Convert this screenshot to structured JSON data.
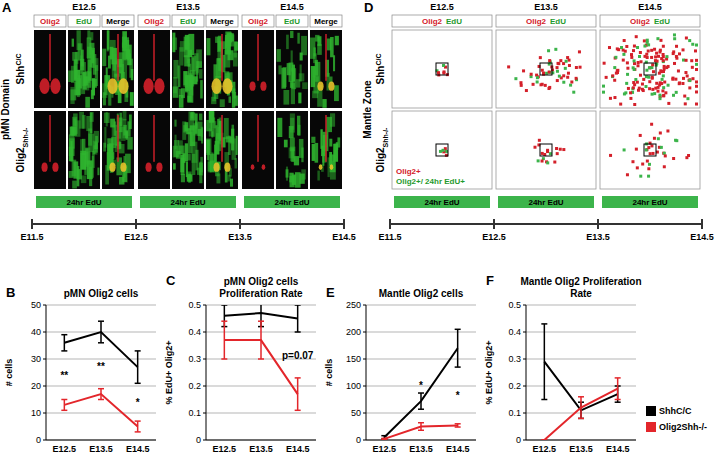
{
  "panel_a": {
    "letter": "A",
    "columns": [
      "E12.5",
      "E13.5",
      "E14.5"
    ],
    "channels": [
      "Olig2",
      "EdU",
      "Merge"
    ],
    "side_label": "pMN Domain",
    "rows": [
      {
        "text": "Shh",
        "superscript": "C/C"
      },
      {
        "text": "Olig2",
        "subscript": "Shh-/-"
      }
    ],
    "pulse": "24hr EdU",
    "timeline": [
      "E11.5",
      "E12.5",
      "E13.5",
      "E14.5"
    ]
  },
  "panel_d": {
    "letter": "D",
    "columns": [
      "E12.5",
      "E13.5",
      "E14.5"
    ],
    "channels": [
      "Olig2",
      "EdU"
    ],
    "side_label": "Mantle Zone",
    "rows": [
      {
        "text": "Shh",
        "superscript": "C/C"
      },
      {
        "text": "Olig2",
        "subscript": "Shh-/-"
      }
    ],
    "key": [
      "Olig2+",
      "Olig2+/ 24hr EdU+"
    ],
    "pulse": "24hr EdU",
    "timeline": [
      "E11.5",
      "E12.5",
      "E13.5",
      "E14.5"
    ]
  },
  "chart_data": [
    {
      "type": "line",
      "panel_label": "B",
      "title": "pMN Olig2 cells",
      "categories": [
        "E12.5",
        "E13.5",
        "E14.5"
      ],
      "y_label": "# cells",
      "ylim": [
        0,
        50
      ],
      "yticks": [
        0,
        10,
        20,
        30,
        40,
        50
      ],
      "grid": true,
      "series": [
        {
          "color": "#000000",
          "values": [
            36,
            40,
            27
          ],
          "errors": [
            3,
            4,
            6
          ]
        },
        {
          "color": "#e3262b",
          "values": [
            13,
            17,
            5
          ],
          "errors": [
            2,
            2,
            2
          ]
        }
      ],
      "annotations": [
        {
          "text": "**",
          "x": "E12.5"
        },
        {
          "text": "**",
          "x": "E13.5"
        },
        {
          "text": "*",
          "x": "E14.5"
        }
      ]
    },
    {
      "type": "line",
      "panel_label": "C",
      "title": "pMN Olig2 cells Proliferation Rate",
      "categories": [
        "E12.5",
        "E13.5",
        "E14.5"
      ],
      "y_label": "% EdU+ Olig2+",
      "ylim": [
        0,
        0.5
      ],
      "yticks": [
        0,
        0.1,
        0.2,
        0.3,
        0.4,
        0.5
      ],
      "grid": true,
      "series": [
        {
          "color": "#000000",
          "values": [
            0.46,
            0.47,
            0.45
          ],
          "errors": [
            0.04,
            0.05,
            0.05
          ]
        },
        {
          "color": "#e3262b",
          "values": [
            0.37,
            0.37,
            0.17
          ],
          "errors": [
            0.07,
            0.07,
            0.06
          ]
        }
      ],
      "annotations": [
        {
          "text": "p=0.07",
          "x": "E14.5"
        }
      ]
    },
    {
      "type": "line",
      "panel_label": "E",
      "title": "Mantle Olig2 cells",
      "categories": [
        "E12.5",
        "E13.5",
        "E14.5"
      ],
      "y_label": "# cells",
      "ylim": [
        0,
        250
      ],
      "yticks": [
        0,
        50,
        100,
        150,
        200,
        250
      ],
      "grid": true,
      "series": [
        {
          "color": "#000000",
          "values": [
            5,
            72,
            170
          ],
          "errors": [
            3,
            15,
            35
          ]
        },
        {
          "color": "#e3262b",
          "values": [
            2,
            25,
            27
          ],
          "errors": [
            1,
            7,
            3
          ]
        }
      ],
      "annotations": [
        {
          "text": "*",
          "x": "E13.5"
        },
        {
          "text": "*",
          "x": "E14.5"
        }
      ]
    },
    {
      "type": "line",
      "panel_label": "F",
      "title": "Mantle Olig2 Proliferation Rate",
      "categories": [
        "E12.5",
        "E13.5",
        "E14.5"
      ],
      "y_label": "% EdU+ Olig2+",
      "ylim": [
        0,
        0.5
      ],
      "yticks": [
        0,
        0.1,
        0.2,
        0.3,
        0.4,
        0.5
      ],
      "grid": true,
      "legend": "right",
      "series": [
        {
          "name": "ShhC/C",
          "color": "#000000",
          "values": [
            0.29,
            0.11,
            0.17
          ],
          "errors": [
            0.14,
            0.03,
            0.03
          ]
        },
        {
          "name": "Olig2Shh-/-",
          "color": "#e3262b",
          "values": [
            0,
            0.12,
            0.19
          ],
          "errors": [
            0,
            0.04,
            0.04
          ]
        }
      ]
    }
  ]
}
